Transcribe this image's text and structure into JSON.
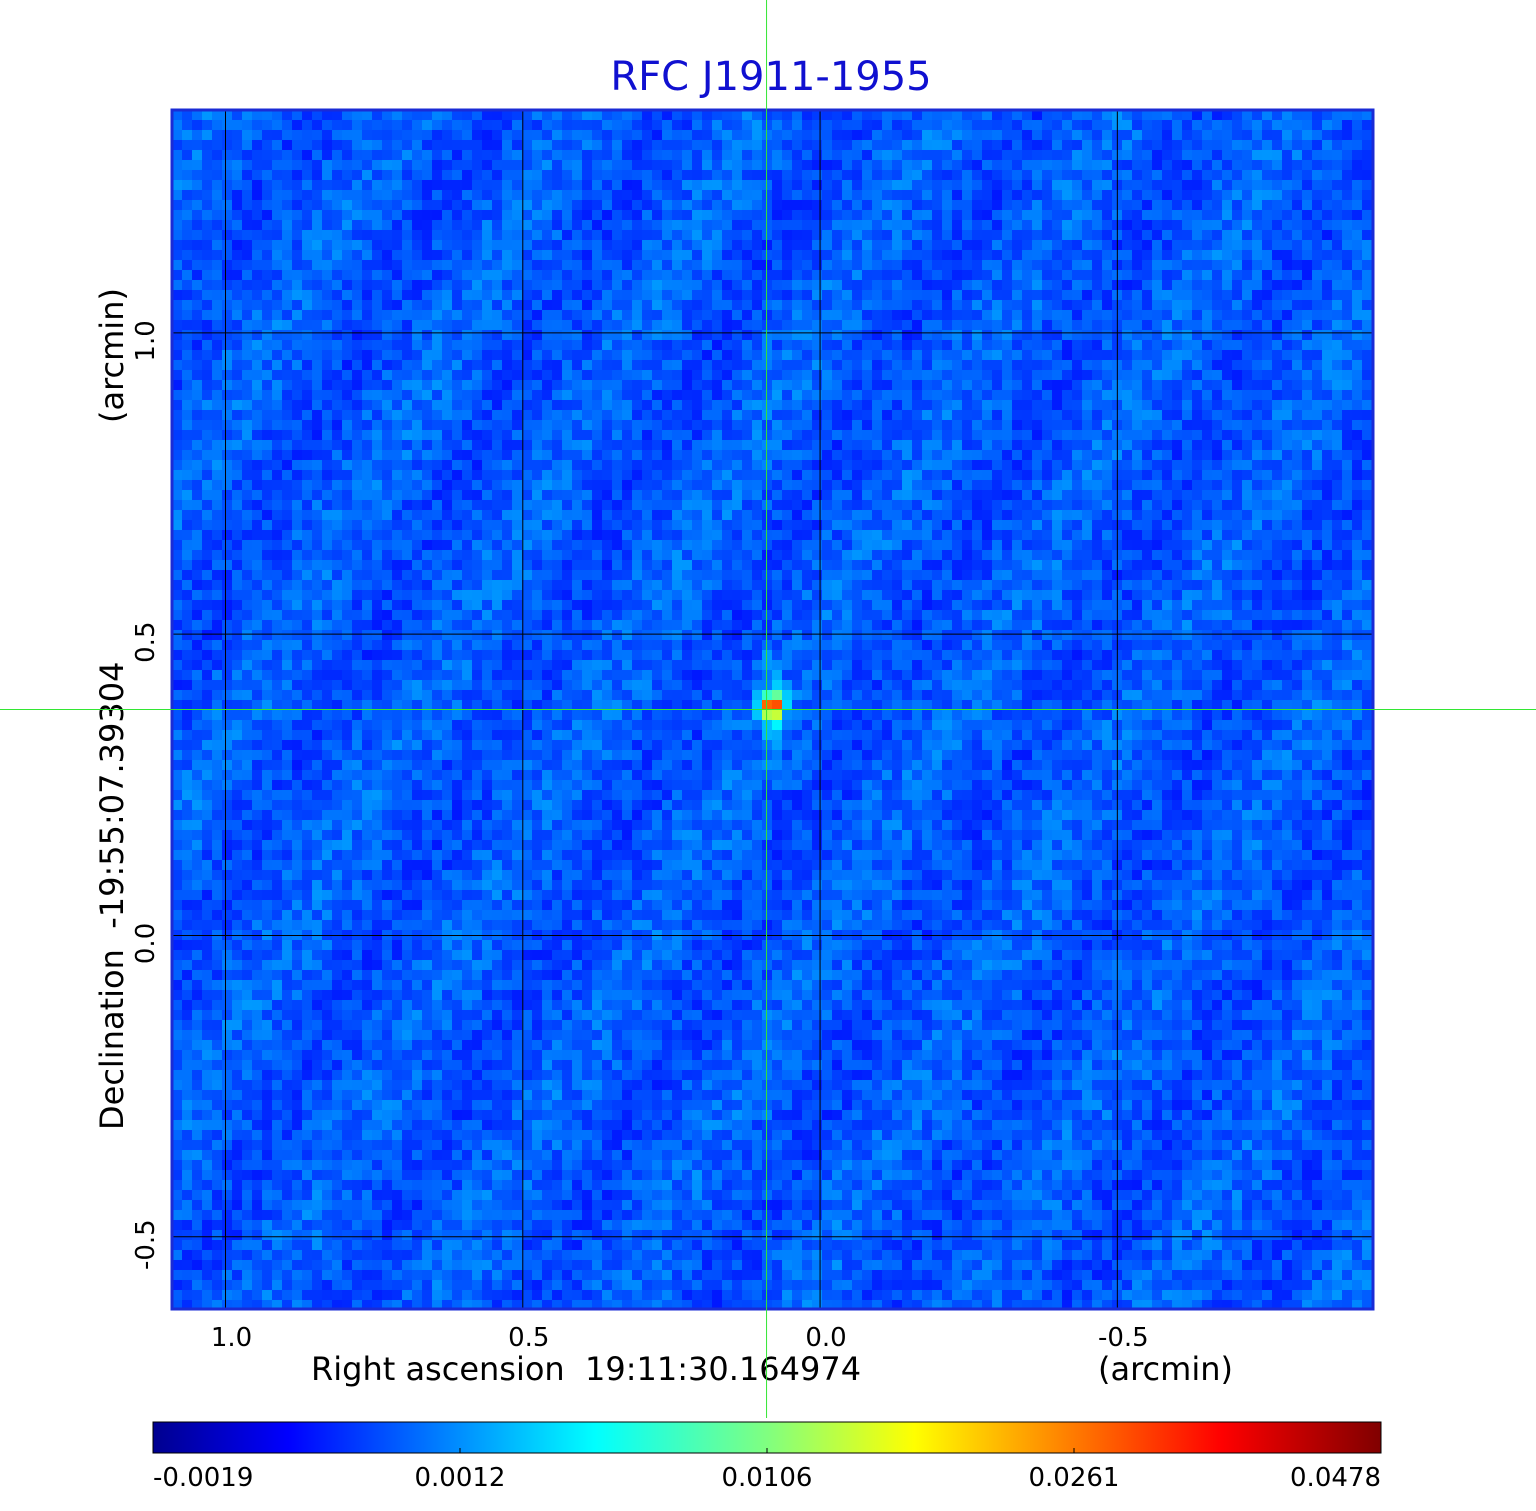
{
  "chart_data": {
    "type": "heatmap",
    "title": "RFC J1911-1955",
    "xlabel": "Right ascension  19:11:30.164974",
    "xunit": "(arcmin)",
    "ylabel": "Declination  -19:55:07.39304",
    "yunit": "(arcmin)",
    "xlim": [
      1.09,
      -0.93
    ],
    "ylim": [
      -0.62,
      1.37
    ],
    "x_ticks": [
      {
        "value": 1.0,
        "label": "1.0"
      },
      {
        "value": 0.5,
        "label": "0.5"
      },
      {
        "value": 0.0,
        "label": "0.0"
      },
      {
        "value": -0.5,
        "label": "-0.5"
      }
    ],
    "y_ticks": [
      {
        "value": 1.0,
        "label": "1.0"
      },
      {
        "value": 0.5,
        "label": "0.5"
      },
      {
        "value": 0.0,
        "label": "0.0"
      },
      {
        "value": -0.5,
        "label": "-0.5"
      }
    ],
    "grid": true,
    "source_peak": {
      "x": 0.08,
      "y": 0.38,
      "value": 0.0478
    },
    "crosshair": {
      "x": 0.09,
      "y": 0.375
    },
    "colorbar": {
      "colormap": "jet",
      "ticks": [
        "-0.0019",
        "0.0012",
        "0.0106",
        "0.0261",
        "0.0478"
      ]
    },
    "colors": {
      "title": "#1010d0",
      "frame": "#1a2bd6",
      "grid": "#000000",
      "crosshair": "#33e633",
      "background_noise": "#1a6ff0"
    }
  }
}
